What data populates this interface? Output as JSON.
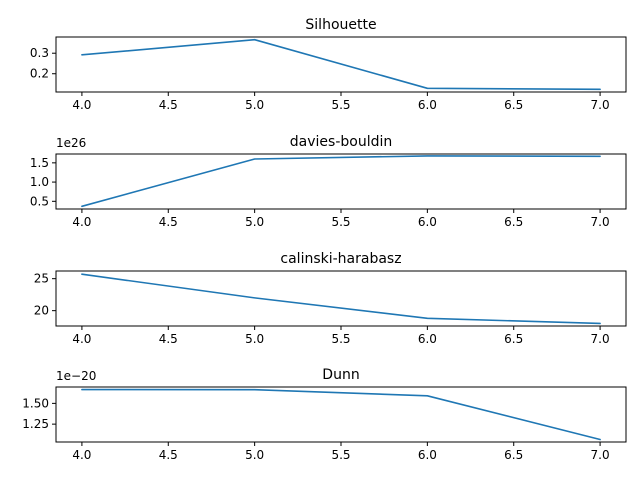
{
  "chart_data": [
    {
      "type": "line",
      "title": "Silhouette",
      "offset_label": "",
      "x": [
        4.0,
        5.0,
        6.0,
        7.0
      ],
      "series": [
        {
          "values": [
            0.292,
            0.366,
            0.129,
            0.124
          ]
        }
      ],
      "xlim": [
        3.85,
        7.15
      ],
      "ylim": [
        0.111,
        0.379
      ],
      "xticks": [
        "4.0",
        "4.5",
        "5.0",
        "5.5",
        "6.0",
        "6.5",
        "7.0"
      ],
      "yticks": [
        {
          "value": 0.2,
          "label": "0.2"
        },
        {
          "value": 0.3,
          "label": "0.3"
        }
      ],
      "color": "#1f77b4",
      "grid": false
    },
    {
      "type": "line",
      "title": "davies-bouldin",
      "offset_label": "1e26",
      "x": [
        4.0,
        5.0,
        6.0,
        7.0
      ],
      "series": [
        {
          "values": [
            0.37,
            1.6,
            1.68,
            1.67
          ]
        }
      ],
      "xlim": [
        3.85,
        7.15
      ],
      "ylim": [
        0.3,
        1.73
      ],
      "xticks": [
        "4.0",
        "4.5",
        "5.0",
        "5.5",
        "6.0",
        "6.5",
        "7.0"
      ],
      "yticks": [
        {
          "value": 0.5,
          "label": "0.5"
        },
        {
          "value": 1.0,
          "label": "1.0"
        },
        {
          "value": 1.5,
          "label": "1.5"
        }
      ],
      "color": "#1f77b4",
      "grid": false
    },
    {
      "type": "line",
      "title": "calinski-harabasz",
      "offset_label": "",
      "x": [
        4.0,
        5.0,
        6.0,
        7.0
      ],
      "series": [
        {
          "values": [
            25.7,
            22.0,
            18.8,
            18.0
          ]
        }
      ],
      "xlim": [
        3.85,
        7.15
      ],
      "ylim": [
        17.6,
        26.2
      ],
      "xticks": [
        "4.0",
        "4.5",
        "5.0",
        "5.5",
        "6.0",
        "6.5",
        "7.0"
      ],
      "yticks": [
        {
          "value": 20,
          "label": "20"
        },
        {
          "value": 25,
          "label": "25"
        }
      ],
      "color": "#1f77b4",
      "grid": false
    },
    {
      "type": "line",
      "title": "Dunn",
      "offset_label": "1e−20",
      "x": [
        4.0,
        5.0,
        6.0,
        7.0
      ],
      "series": [
        {
          "values": [
            1.666,
            1.665,
            1.591,
            1.065
          ]
        }
      ],
      "xlim": [
        3.85,
        7.15
      ],
      "ylim": [
        1.035,
        1.697
      ],
      "xticks": [
        "4.0",
        "4.5",
        "5.0",
        "5.5",
        "6.0",
        "6.5",
        "7.0"
      ],
      "yticks": [
        {
          "value": 1.25,
          "label": "1.25"
        },
        {
          "value": 1.5,
          "label": "1.50"
        }
      ],
      "color": "#1f77b4",
      "grid": false
    }
  ]
}
